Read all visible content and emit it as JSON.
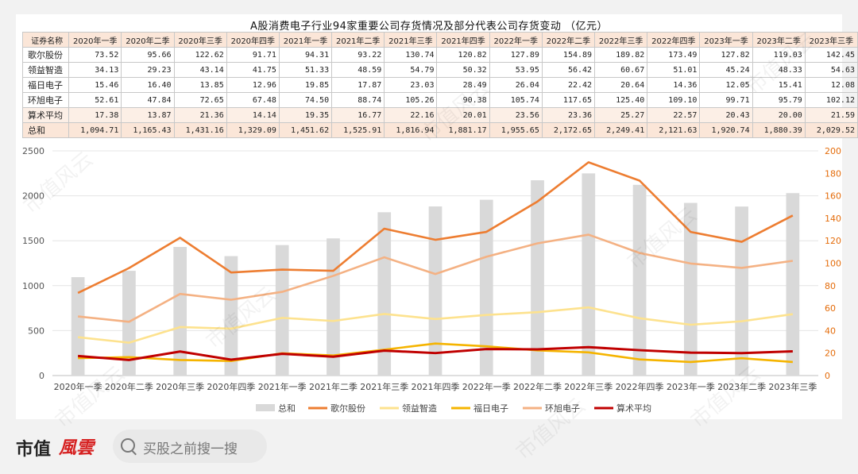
{
  "chart_data": {
    "title": "A股消费电子行业94家重要公司存货情况及部分代表公司存货变动 （亿元）",
    "type": "bar+line",
    "table_header": "证券名称",
    "categories": [
      "2020年一季",
      "2020年二季",
      "2020年三季",
      "2020年四季",
      "2021年一季",
      "2021年二季",
      "2021年三季",
      "2021年四季",
      "2022年一季",
      "2022年二季",
      "2022年三季",
      "2022年四季",
      "2023年一季",
      "2023年二季",
      "2023年三季"
    ],
    "series": [
      {
        "name": "歌尔股份",
        "axis": "right",
        "type": "line",
        "color": "#ed7d31",
        "values": [
          73.52,
          95.66,
          122.62,
          91.71,
          94.31,
          93.22,
          130.74,
          120.82,
          127.89,
          154.89,
          189.82,
          173.49,
          127.82,
          119.03,
          142.45
        ],
        "display": [
          "73.52",
          "95.66",
          "122.62",
          "91.71",
          "94.31",
          "93.22",
          "130.74",
          "120.82",
          "127.89",
          "154.89",
          "189.82",
          "173.49",
          "127.82",
          "119.03",
          "142.45"
        ]
      },
      {
        "name": "领益智造",
        "axis": "right",
        "type": "line",
        "color": "#fde28e",
        "values": [
          34.13,
          29.23,
          43.14,
          41.75,
          51.33,
          48.59,
          54.79,
          50.32,
          53.95,
          56.42,
          60.67,
          51.01,
          45.24,
          48.33,
          54.63
        ],
        "display": [
          "34.13",
          "29.23",
          "43.14",
          "41.75",
          "51.33",
          "48.59",
          "54.79",
          "50.32",
          "53.95",
          "56.42",
          "60.67",
          "51.01",
          "45.24",
          "48.33",
          "54.63"
        ]
      },
      {
        "name": "福日电子",
        "axis": "right",
        "type": "line",
        "color": "#f5b400",
        "values": [
          15.46,
          16.4,
          13.85,
          12.96,
          19.85,
          17.87,
          23.03,
          28.49,
          26.04,
          22.42,
          20.64,
          14.36,
          12.05,
          15.41,
          12.08
        ],
        "display": [
          "15.46",
          "16.40",
          "13.85",
          "12.96",
          "19.85",
          "17.87",
          "23.03",
          "28.49",
          "26.04",
          "22.42",
          "20.64",
          "14.36",
          "12.05",
          "15.41",
          "12.08"
        ]
      },
      {
        "name": "环旭电子",
        "axis": "right",
        "type": "line",
        "color": "#f4b183",
        "values": [
          52.61,
          47.84,
          72.65,
          67.48,
          74.5,
          88.74,
          105.26,
          90.38,
          105.74,
          117.65,
          125.4,
          109.1,
          99.71,
          95.79,
          102.12
        ],
        "display": [
          "52.61",
          "47.84",
          "72.65",
          "67.48",
          "74.50",
          "88.74",
          "105.26",
          "90.38",
          "105.74",
          "117.65",
          "125.40",
          "109.10",
          "99.71",
          "95.79",
          "102.12"
        ]
      },
      {
        "name": "算术平均",
        "axis": "right",
        "type": "line",
        "color": "#c00000",
        "values": [
          17.38,
          13.87,
          21.36,
          14.14,
          19.35,
          16.77,
          22.16,
          20.01,
          23.56,
          23.36,
          25.27,
          22.57,
          20.43,
          20.0,
          21.59
        ],
        "display": [
          "17.38",
          "13.87",
          "21.36",
          "14.14",
          "19.35",
          "16.77",
          "22.16",
          "20.01",
          "23.56",
          "23.36",
          "25.27",
          "22.57",
          "20.43",
          "20.00",
          "21.59"
        ]
      },
      {
        "name": "总和",
        "axis": "left",
        "type": "bar",
        "color": "#d9d9d9",
        "values": [
          1094.71,
          1165.43,
          1431.16,
          1329.09,
          1451.62,
          1525.91,
          1816.94,
          1881.17,
          1955.65,
          2172.65,
          2249.41,
          2121.63,
          1920.74,
          1880.39,
          2029.52
        ],
        "display": [
          "1,094.71",
          "1,165.43",
          "1,431.16",
          "1,329.09",
          "1,451.62",
          "1,525.91",
          "1,816.94",
          "1,881.17",
          "1,955.65",
          "2,172.65",
          "2,249.41",
          "2,121.63",
          "1,920.74",
          "1,880.39",
          "2,029.52"
        ]
      }
    ],
    "legend_order": [
      "总和",
      "歌尔股份",
      "领益智造",
      "福日电子",
      "环旭电子",
      "算术平均"
    ],
    "y_left": {
      "min": 0,
      "max": 2500,
      "ticks": [
        "0",
        "500",
        "1000",
        "1500",
        "2000",
        "2500"
      ]
    },
    "y_right": {
      "min": 0,
      "max": 200,
      "ticks": [
        "0",
        "20",
        "40",
        "60",
        "80",
        "100",
        "120",
        "140",
        "160",
        "180",
        "200"
      ]
    },
    "legend_position": "bottom",
    "grid": true
  },
  "footer": {
    "logo_text": "市值",
    "logo_script": "風雲",
    "search_placeholder": "买股之前搜一搜"
  },
  "watermark": "市值风云"
}
